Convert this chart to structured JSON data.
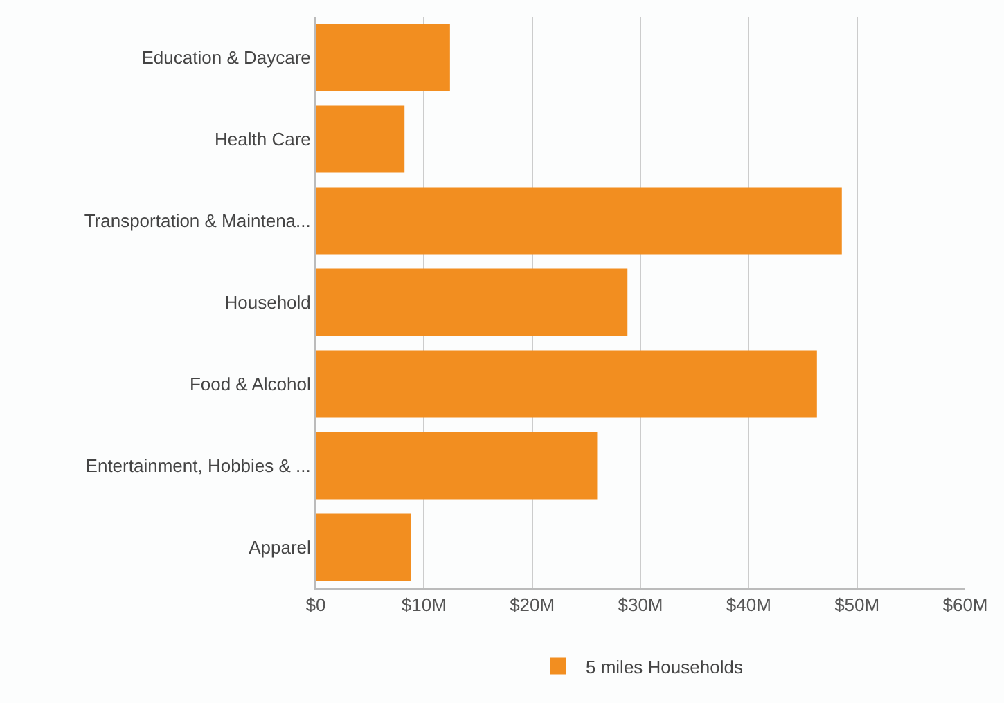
{
  "chart_data": {
    "type": "bar",
    "orientation": "horizontal",
    "categories": [
      "Education & Daycare",
      "Health Care",
      "Transportation & Maintena...",
      "Household",
      "Food & Alcohol",
      "Entertainment, Hobbies & ...",
      "Apparel"
    ],
    "series": [
      {
        "name": "5 miles Households",
        "color": "#f28e20",
        "values": [
          12.4,
          8.2,
          48.6,
          28.8,
          46.3,
          26.0,
          8.8
        ]
      }
    ],
    "xlim": [
      0,
      60
    ],
    "xticks": [
      {
        "value": 0,
        "label": "$0"
      },
      {
        "value": 10,
        "label": "$10M"
      },
      {
        "value": 20,
        "label": "$20M"
      },
      {
        "value": 30,
        "label": "$30M"
      },
      {
        "value": 40,
        "label": "$40M"
      },
      {
        "value": 50,
        "label": "$50M"
      },
      {
        "value": 60,
        "label": "$60M"
      }
    ],
    "grid": "x",
    "legend": "bottom"
  }
}
